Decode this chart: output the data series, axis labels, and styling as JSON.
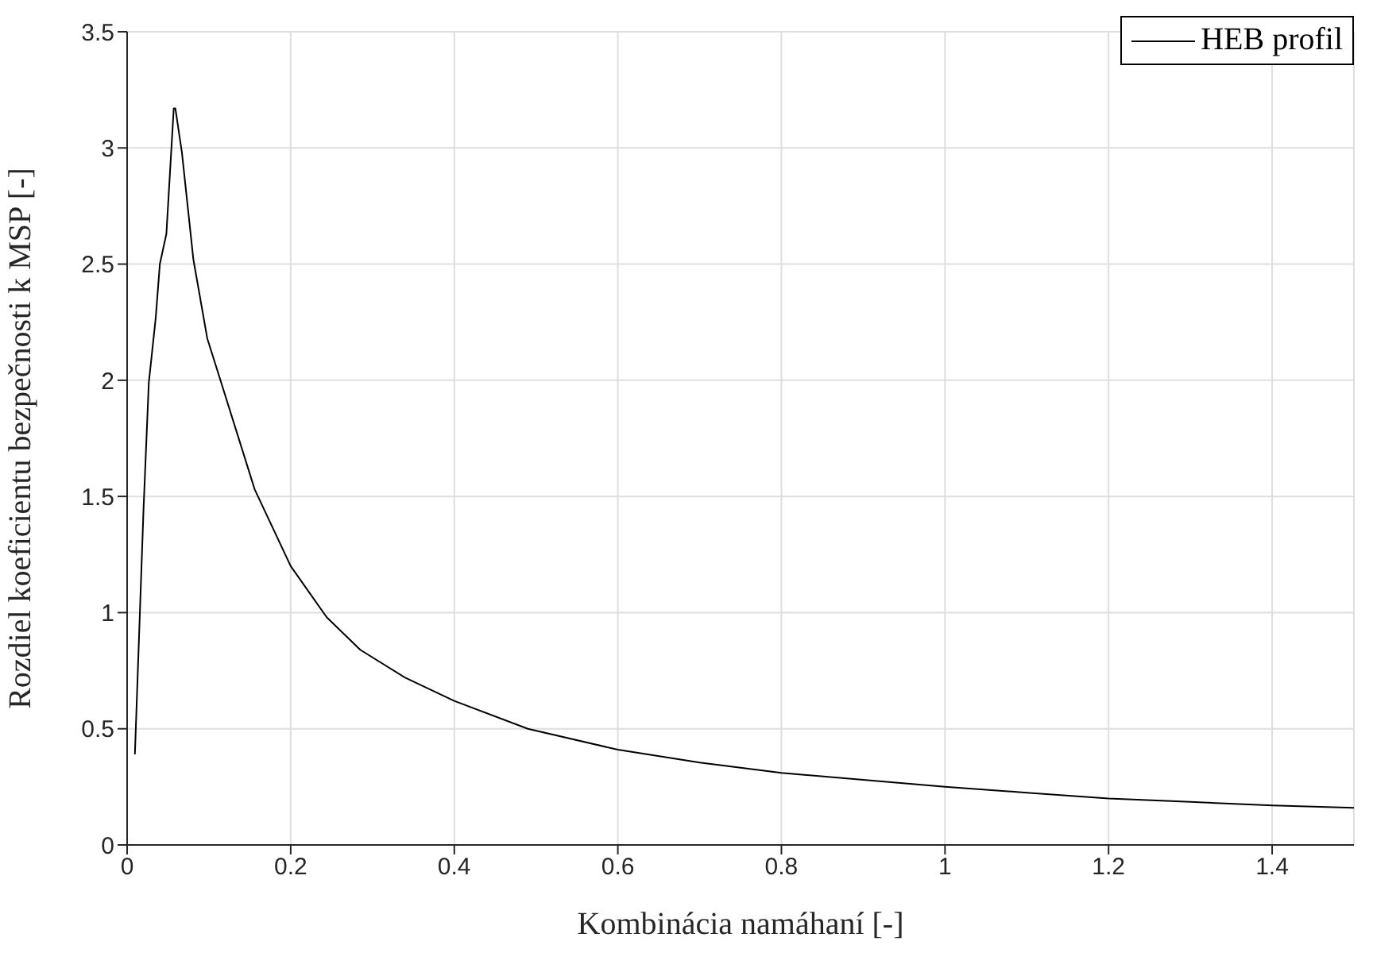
{
  "chart_data": {
    "type": "line",
    "xlabel": "Kombinácia namáhaní [-]",
    "ylabel": "Rozdiel koeficientu bezpečnosti k MSP [-]",
    "xlim": [
      0,
      1.5
    ],
    "xticks": [
      0,
      0.2,
      0.4,
      0.6,
      0.8,
      1,
      1.2,
      1.4
    ],
    "ylim": [
      0,
      3.5
    ],
    "yticks": [
      0,
      0.5,
      1,
      1.5,
      2,
      2.5,
      3,
      3.5
    ],
    "grid": true,
    "legend": "top right",
    "marker": "none",
    "line_style": "solid",
    "series": [
      {
        "name": "HEB profil",
        "color": "#000000",
        "x": [
          0.0095,
          0.02,
          0.0265,
          0.035,
          0.04,
          0.048,
          0.057,
          0.059,
          0.067,
          0.081,
          0.098,
          0.115,
          0.156,
          0.2,
          0.244,
          0.285,
          0.34,
          0.4,
          0.49,
          0.6,
          0.7,
          0.8,
          0.9,
          1.0,
          1.1,
          1.2,
          1.3,
          1.4,
          1.5
        ],
        "values": [
          0.39,
          1.44,
          1.99,
          2.27,
          2.5,
          2.63,
          3.17,
          3.17,
          2.98,
          2.52,
          2.18,
          1.99,
          1.53,
          1.2,
          0.98,
          0.84,
          0.72,
          0.62,
          0.5,
          0.41,
          0.355,
          0.31,
          0.28,
          0.25,
          0.225,
          0.2,
          0.185,
          0.17,
          0.16
        ]
      }
    ]
  }
}
